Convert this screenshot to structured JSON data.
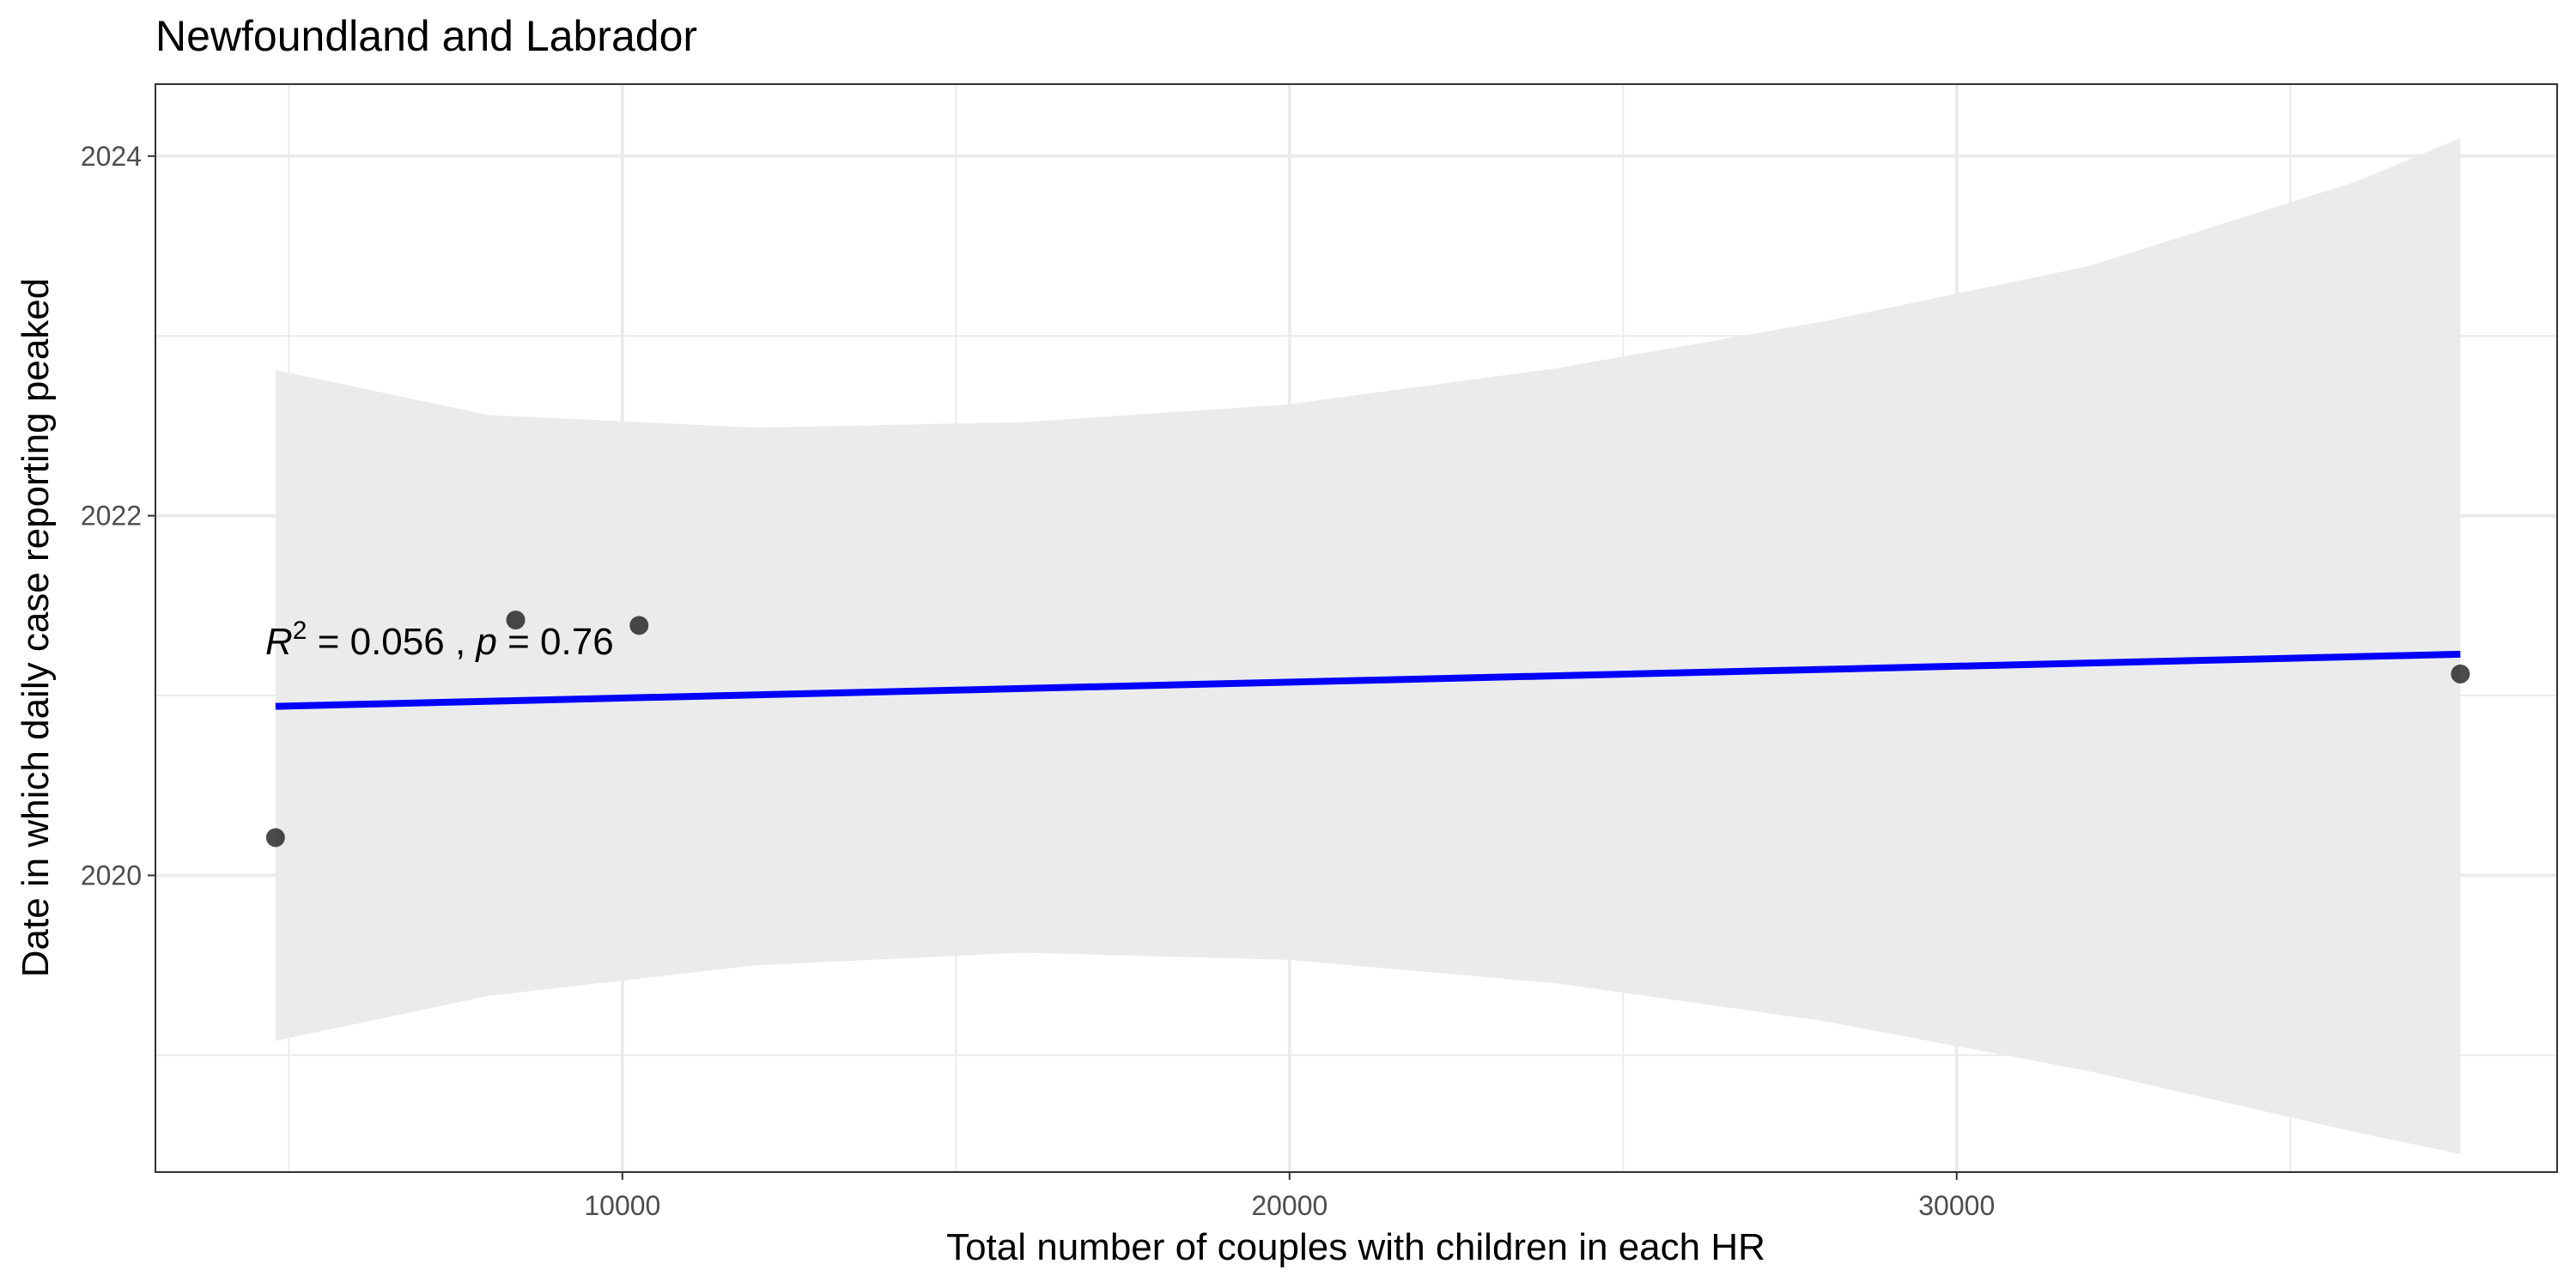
{
  "chart_data": {
    "type": "scatter",
    "title": "Newfoundland and Labrador",
    "xlabel": "Total number of couples with children in each HR",
    "ylabel": "Date in which daily case reporting peaked",
    "xlim": [
      3000,
      39000
    ],
    "ylim": [
      2018.35,
      2024.4
    ],
    "x_ticks": [
      10000,
      20000,
      30000
    ],
    "x_tick_labels": [
      "10000",
      "20000",
      "30000"
    ],
    "y_ticks": [
      2020,
      2022,
      2024
    ],
    "y_tick_labels": [
      "2020",
      "2022",
      "2024"
    ],
    "grid": true,
    "points": [
      {
        "x": 4800,
        "y": 2020.21
      },
      {
        "x": 8400,
        "y": 2021.42
      },
      {
        "x": 10250,
        "y": 2021.39
      },
      {
        "x": 37550,
        "y": 2021.12
      }
    ],
    "fit_line": {
      "color": "#0000ff",
      "x": [
        4800,
        37550
      ],
      "y": [
        2020.94,
        2021.23
      ]
    },
    "confidence_band": {
      "x": [
        4800,
        8000,
        12000,
        16000,
        20000,
        24000,
        28000,
        32000,
        36000,
        37550
      ],
      "lower": [
        2019.08,
        2019.33,
        2019.5,
        2019.57,
        2019.53,
        2019.4,
        2019.19,
        2018.91,
        2018.57,
        2018.45
      ],
      "upper": [
        2022.81,
        2022.56,
        2022.49,
        2022.52,
        2022.62,
        2022.82,
        2023.08,
        2023.39,
        2023.86,
        2024.1
      ]
    },
    "annotation": {
      "r2_symbol": "R",
      "r2_exp": "2",
      "r2_text": " = 0.056 , ",
      "p_symbol": "p",
      "p_text": " = 0.76"
    },
    "colors": {
      "points": "#000000",
      "band": "#ebebeb",
      "grid": "#ebebeb",
      "panel_border": "#333333"
    }
  }
}
